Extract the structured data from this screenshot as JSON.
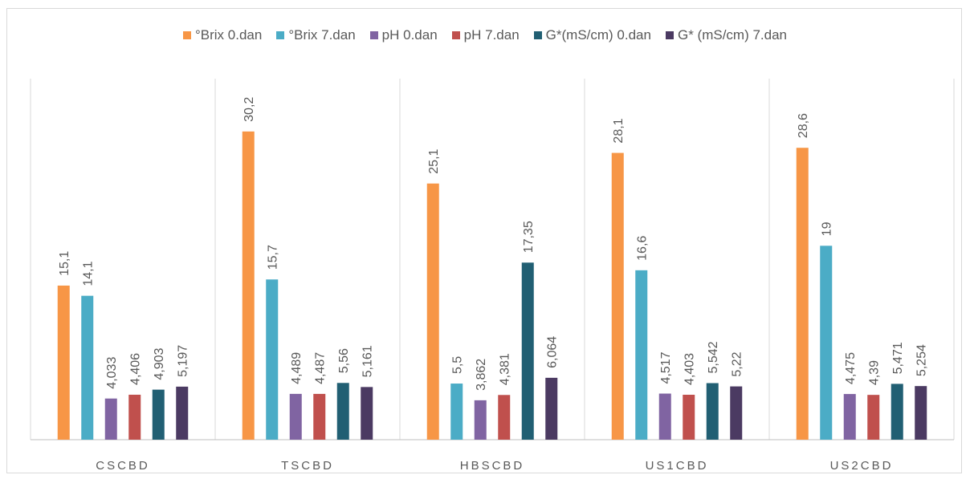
{
  "chart_data": {
    "type": "bar",
    "categories": [
      "CSCBD",
      "TSCBD",
      "HBSCBD",
      "US1CBD",
      "US2CBD"
    ],
    "series": [
      {
        "name": "°Brix 0.dan",
        "color": "#f79646",
        "values": [
          15.1,
          30.2,
          25.1,
          28.1,
          28.6
        ],
        "labels": [
          "15,1",
          "30,2",
          "25,1",
          "28,1",
          "28,6"
        ]
      },
      {
        "name": "°Brix 7.dan",
        "color": "#4bacc6",
        "values": [
          14.1,
          15.7,
          5.5,
          16.6,
          19
        ],
        "labels": [
          "14,1",
          "15,7",
          "5,5",
          "16,6",
          "19"
        ]
      },
      {
        "name": "pH 0.dan",
        "color": "#8064a2",
        "values": [
          4.033,
          4.489,
          3.862,
          4.517,
          4.475
        ],
        "labels": [
          "4,033",
          "4,489",
          "3,862",
          "4,517",
          "4,475"
        ]
      },
      {
        "name": "pH 7.dan",
        "color": "#c0504d",
        "values": [
          4.406,
          4.487,
          4.381,
          4.403,
          4.39
        ],
        "labels": [
          "4,406",
          "4,487",
          "4,381",
          "4,403",
          "4,39"
        ]
      },
      {
        "name": "G*(mS/cm) 0.dan",
        "color": "#215f73",
        "values": [
          4.903,
          5.56,
          17.35,
          5.542,
          5.471
        ],
        "labels": [
          "4,903",
          "5,56",
          "17,35",
          "5,542",
          "5,471"
        ]
      },
      {
        "name": "G* (mS/cm) 7.dan",
        "color": "#4b3a62",
        "values": [
          5.197,
          5.161,
          6.064,
          5.22,
          5.254
        ],
        "labels": [
          "5,197",
          "5,161",
          "6,064",
          "5,22",
          "5,254"
        ]
      }
    ],
    "ylim": [
      0,
      35
    ],
    "grid": false,
    "legend_position": "top"
  }
}
